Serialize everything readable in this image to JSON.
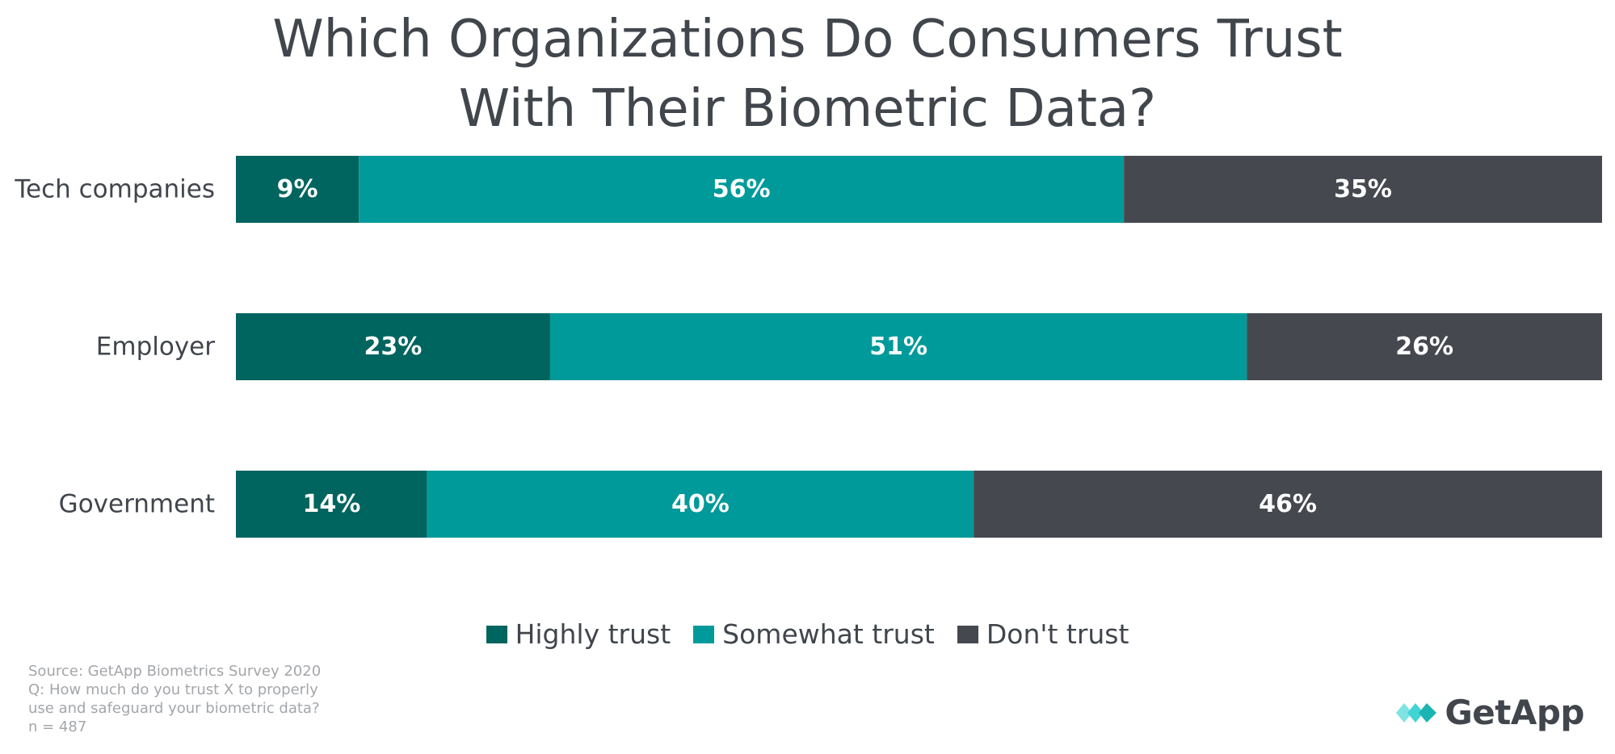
{
  "chart_data": {
    "type": "bar",
    "orientation": "horizontal",
    "stacked": true,
    "title": "Which Organizations Do Consumers Trust With Their Biometric Data?",
    "title_lines": [
      "Which Organizations Do Consumers Trust",
      "With Their Biometric Data?"
    ],
    "categories": [
      "Tech companies",
      "Employer",
      "Government"
    ],
    "series": [
      {
        "name": "Highly trust",
        "color": "#00645f",
        "values": [
          9,
          23,
          14
        ]
      },
      {
        "name": "Somewhat trust",
        "color": "#009a9a",
        "values": [
          56,
          51,
          40
        ]
      },
      {
        "name": "Don't trust",
        "color": "#46484f",
        "values": [
          35,
          26,
          46
        ]
      }
    ],
    "value_suffix": "%",
    "xlim": [
      0,
      100
    ],
    "xlabel": "",
    "ylabel": "",
    "legend_position": "bottom-center",
    "grid": false
  },
  "footer": {
    "source_lines": [
      "Source: GetApp Biometrics Survey 2020",
      "Q: How much do you trust X to properly",
      "use and safeguard your biometric data?",
      "n = 487"
    ]
  },
  "branding": {
    "logo_text": "GetApp",
    "logo_icon": "getapp-chevron-icon",
    "logo_colors": [
      "#41d4d4",
      "#1cb3b3"
    ]
  }
}
